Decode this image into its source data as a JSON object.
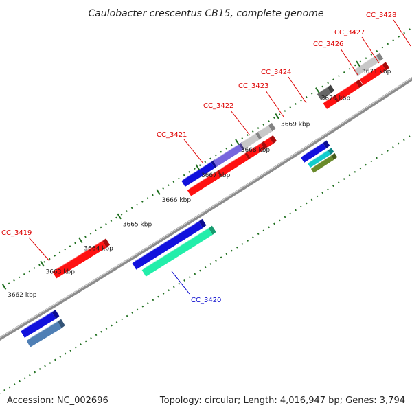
{
  "title": "Caulobacter crescentus CB15, complete genome",
  "footer": {
    "accession": "Accession: NC_002696",
    "summary": "Topology: circular; Length: 4,016,947 bp; Genes: 3,794"
  },
  "colors": {
    "background": "#ffffff",
    "backbone": "#8c8c8c",
    "tick": "#1e6e1e",
    "forward_label": "#dd0000",
    "reverse_label": "#0000cc",
    "feature_red": "#ff1111",
    "feature_blue": "#1111dd",
    "feature_green": "#22eeaa",
    "feature_steel": "#4f7fb5",
    "feature_lavender": "#7766dd",
    "feature_lightgray": "#c8c8c8",
    "feature_darkgray": "#666666",
    "feature_cyan": "#11cccc",
    "feature_olive": "#6a8a2a"
  },
  "axis_ticks": [
    {
      "label": "3662 kbp",
      "kbp": 3662
    },
    {
      "label": "3663 kbp",
      "kbp": 3663
    },
    {
      "label": "3664 kbp",
      "kbp": 3664
    },
    {
      "label": "3665 kbp",
      "kbp": 3665
    },
    {
      "label": "3666 kbp",
      "kbp": 3666
    },
    {
      "label": "3667 kbp",
      "kbp": 3667
    },
    {
      "label": "3668 kbp",
      "kbp": 3668
    },
    {
      "label": "3669 kbp",
      "kbp": 3669
    },
    {
      "label": "3670 kbp",
      "kbp": 3670
    },
    {
      "label": "3671 kbp",
      "kbp": 3671
    }
  ],
  "gene_labels": [
    {
      "text": "CC_3419",
      "strand": "forward"
    },
    {
      "text": "CC_3420",
      "strand": "reverse"
    },
    {
      "text": "CC_3421",
      "strand": "forward"
    },
    {
      "text": "CC_3422",
      "strand": "forward"
    },
    {
      "text": "CC_3423",
      "strand": "forward"
    },
    {
      "text": "CC_3424",
      "strand": "forward"
    },
    {
      "text": "CC_3426",
      "strand": "forward"
    },
    {
      "text": "CC_3427",
      "strand": "forward"
    },
    {
      "text": "CC_3428",
      "strand": "forward"
    }
  ]
}
